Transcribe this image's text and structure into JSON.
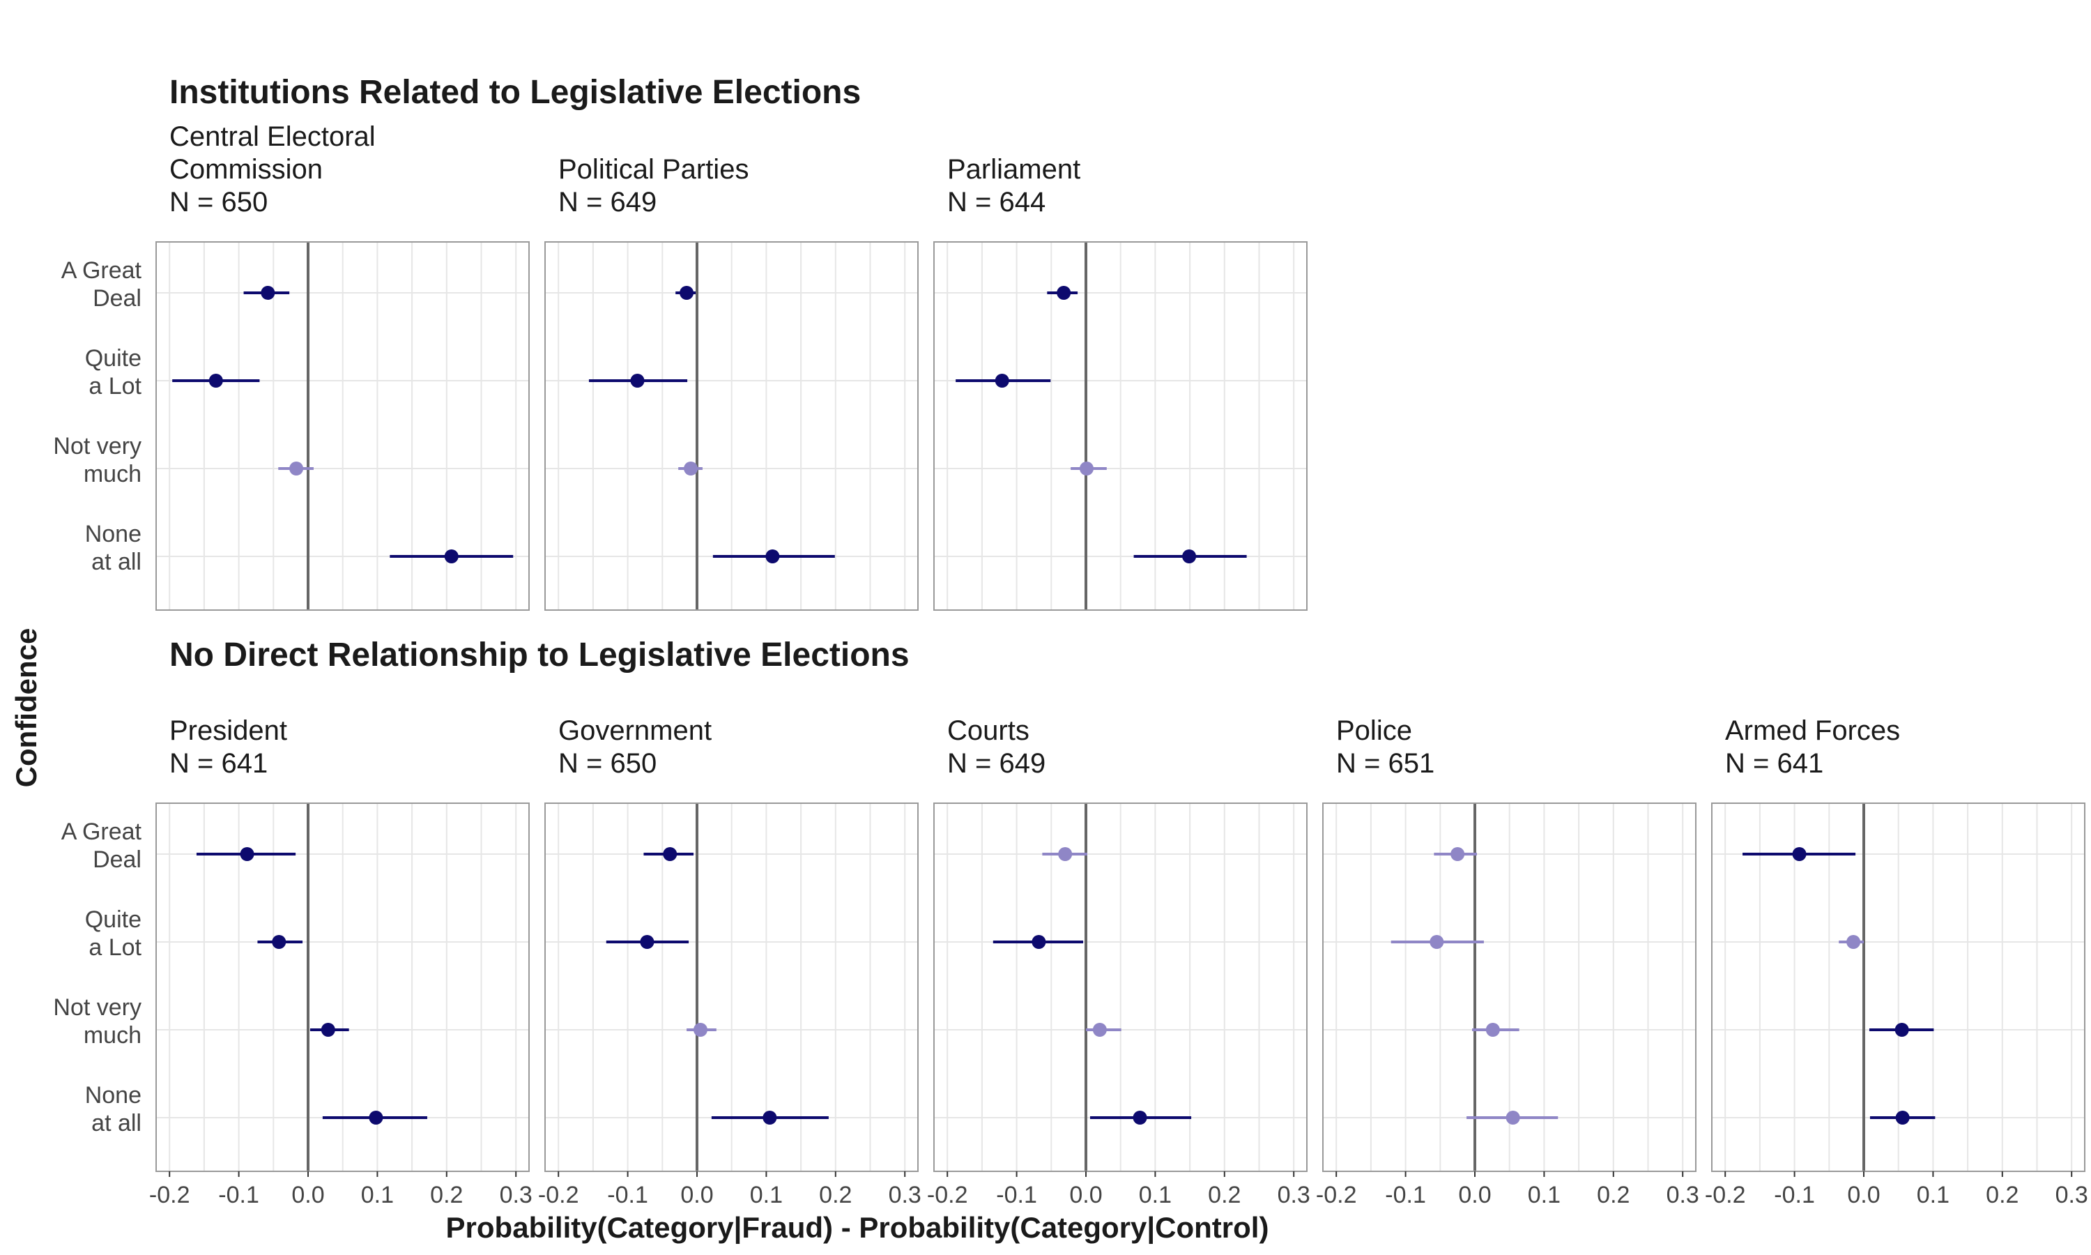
{
  "ylabel": "Confidence",
  "xlabel": "Probability(Category|Fraud) - Probability(Category|Control)",
  "categories": [
    "A Great Deal",
    "Quite a Lot",
    "Not very much",
    "None at all"
  ],
  "category_lines": [
    [
      "A Great",
      "Deal"
    ],
    [
      "Quite",
      "a Lot"
    ],
    [
      "Not very",
      "much"
    ],
    [
      "None",
      "at all"
    ]
  ],
  "x_ticks": [
    "-0.2",
    "-0.1",
    "0.0",
    "0.1",
    "0.2",
    "0.3"
  ],
  "colors": {
    "significant": "#0d0a6e",
    "not_significant": "#8f86c6",
    "zero_line": "#666666",
    "grid": "#e6e6e6",
    "frame": "#999999"
  },
  "groups": [
    {
      "title": "Institutions Related to Legislative Elections"
    },
    {
      "title": "No Direct Relationship to Legislative Elections"
    }
  ],
  "chart_data": {
    "type": "scatter",
    "xlim": [
      -0.22,
      0.32
    ],
    "x_ticks": [
      -0.2,
      -0.1,
      0.0,
      0.1,
      0.2,
      0.3
    ],
    "grid": true,
    "panels": [
      {
        "group": 0,
        "name_lines": [
          "Central Electoral",
          "Commission"
        ],
        "n_label": "N = 650",
        "points": [
          {
            "category": "A Great Deal",
            "estimate": -0.058,
            "lower": -0.093,
            "upper": -0.027,
            "significant": true
          },
          {
            "category": "Quite a Lot",
            "estimate": -0.133,
            "lower": -0.196,
            "upper": -0.07,
            "significant": true
          },
          {
            "category": "Not very much",
            "estimate": -0.017,
            "lower": -0.043,
            "upper": 0.008,
            "significant": false
          },
          {
            "category": "None at all",
            "estimate": 0.207,
            "lower": 0.118,
            "upper": 0.296,
            "significant": true
          }
        ]
      },
      {
        "group": 0,
        "name_lines": [
          "Political Parties"
        ],
        "n_label": "N = 649",
        "points": [
          {
            "category": "A Great Deal",
            "estimate": -0.015,
            "lower": -0.031,
            "upper": -0.002,
            "significant": true
          },
          {
            "category": "Quite a Lot",
            "estimate": -0.086,
            "lower": -0.156,
            "upper": -0.014,
            "significant": true
          },
          {
            "category": "Not very much",
            "estimate": -0.009,
            "lower": -0.027,
            "upper": 0.008,
            "significant": false
          },
          {
            "category": "None at all",
            "estimate": 0.109,
            "lower": 0.023,
            "upper": 0.199,
            "significant": true
          }
        ]
      },
      {
        "group": 0,
        "name_lines": [
          "Parliament"
        ],
        "n_label": "N = 644",
        "points": [
          {
            "category": "A Great Deal",
            "estimate": -0.032,
            "lower": -0.056,
            "upper": -0.012,
            "significant": true
          },
          {
            "category": "Quite a Lot",
            "estimate": -0.121,
            "lower": -0.188,
            "upper": -0.051,
            "significant": true
          },
          {
            "category": "Not very much",
            "estimate": 0.001,
            "lower": -0.022,
            "upper": 0.03,
            "significant": false
          },
          {
            "category": "None at all",
            "estimate": 0.149,
            "lower": 0.069,
            "upper": 0.232,
            "significant": true
          }
        ]
      },
      {
        "group": 1,
        "name_lines": [
          "President"
        ],
        "n_label": "N = 641",
        "points": [
          {
            "category": "A Great Deal",
            "estimate": -0.088,
            "lower": -0.161,
            "upper": -0.018,
            "significant": true
          },
          {
            "category": "Quite a Lot",
            "estimate": -0.042,
            "lower": -0.073,
            "upper": -0.008,
            "significant": true
          },
          {
            "category": "Not very much",
            "estimate": 0.029,
            "lower": 0.003,
            "upper": 0.059,
            "significant": true
          },
          {
            "category": "None at all",
            "estimate": 0.098,
            "lower": 0.021,
            "upper": 0.172,
            "significant": true
          }
        ]
      },
      {
        "group": 1,
        "name_lines": [
          "Government"
        ],
        "n_label": "N = 650",
        "points": [
          {
            "category": "A Great Deal",
            "estimate": -0.039,
            "lower": -0.077,
            "upper": -0.005,
            "significant": true
          },
          {
            "category": "Quite a Lot",
            "estimate": -0.072,
            "lower": -0.131,
            "upper": -0.012,
            "significant": true
          },
          {
            "category": "Not very much",
            "estimate": 0.005,
            "lower": -0.015,
            "upper": 0.028,
            "significant": false
          },
          {
            "category": "None at all",
            "estimate": 0.105,
            "lower": 0.021,
            "upper": 0.19,
            "significant": true
          }
        ]
      },
      {
        "group": 1,
        "name_lines": [
          "Courts"
        ],
        "n_label": "N = 649",
        "points": [
          {
            "category": "A Great Deal",
            "estimate": -0.03,
            "lower": -0.063,
            "upper": 0.002,
            "significant": false
          },
          {
            "category": "Quite a Lot",
            "estimate": -0.068,
            "lower": -0.134,
            "upper": -0.004,
            "significant": true
          },
          {
            "category": "Not very much",
            "estimate": 0.02,
            "lower": 0.0,
            "upper": 0.051,
            "significant": false
          },
          {
            "category": "None at all",
            "estimate": 0.078,
            "lower": 0.006,
            "upper": 0.152,
            "significant": true
          }
        ]
      },
      {
        "group": 1,
        "name_lines": [
          "Police"
        ],
        "n_label": "N = 651",
        "points": [
          {
            "category": "A Great Deal",
            "estimate": -0.025,
            "lower": -0.059,
            "upper": 0.003,
            "significant": false
          },
          {
            "category": "Quite a Lot",
            "estimate": -0.055,
            "lower": -0.121,
            "upper": 0.013,
            "significant": false
          },
          {
            "category": "Not very much",
            "estimate": 0.026,
            "lower": -0.004,
            "upper": 0.064,
            "significant": false
          },
          {
            "category": "None at all",
            "estimate": 0.055,
            "lower": -0.012,
            "upper": 0.12,
            "significant": false
          }
        ]
      },
      {
        "group": 1,
        "name_lines": [
          "Armed Forces"
        ],
        "n_label": "N = 641",
        "points": [
          {
            "category": "A Great Deal",
            "estimate": -0.093,
            "lower": -0.175,
            "upper": -0.012,
            "significant": true
          },
          {
            "category": "Quite a Lot",
            "estimate": -0.015,
            "lower": -0.036,
            "upper": 0.0,
            "significant": false
          },
          {
            "category": "Not very much",
            "estimate": 0.055,
            "lower": 0.008,
            "upper": 0.101,
            "significant": true
          },
          {
            "category": "None at all",
            "estimate": 0.056,
            "lower": 0.009,
            "upper": 0.103,
            "significant": true
          }
        ]
      }
    ]
  }
}
